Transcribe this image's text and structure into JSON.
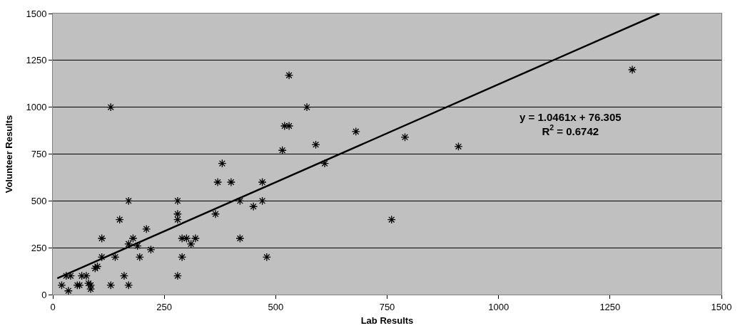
{
  "chart_data": {
    "type": "scatter",
    "xlabel": "Lab Results",
    "ylabel": "Volunteer Results",
    "xlim": [
      0,
      1500
    ],
    "xticks": [
      0,
      250,
      500,
      750,
      1000,
      1250,
      1500
    ],
    "ylim": [
      0,
      1500
    ],
    "yticks": [
      0,
      250,
      500,
      750,
      1000,
      1250,
      1500
    ],
    "grid": "y",
    "marker": "cross",
    "series": [
      {
        "color": "#000000",
        "x": [
          20,
          30,
          35,
          40,
          55,
          60,
          65,
          75,
          80,
          85,
          85,
          95,
          100,
          110,
          110,
          130,
          130,
          140,
          150,
          160,
          170,
          170,
          170,
          180,
          190,
          195,
          210,
          220,
          280,
          280,
          280,
          280,
          290,
          290,
          300,
          310,
          320,
          365,
          370,
          380,
          400,
          420,
          420,
          450,
          470,
          470,
          480,
          515,
          520,
          530,
          530,
          570,
          590,
          610,
          680,
          760,
          790,
          910,
          1300
        ],
        "values": [
          50,
          100,
          20,
          100,
          50,
          50,
          100,
          100,
          60,
          30,
          50,
          140,
          150,
          300,
          200,
          1000,
          50,
          200,
          400,
          100,
          270,
          50,
          500,
          300,
          260,
          200,
          350,
          240,
          500,
          430,
          400,
          100,
          300,
          200,
          300,
          270,
          300,
          430,
          600,
          700,
          600,
          500,
          300,
          470,
          600,
          500,
          200,
          770,
          900,
          900,
          1170,
          1000,
          800,
          700,
          870,
          400,
          840,
          790,
          1200
        ]
      },
      {
        "type": "line",
        "marker": "none",
        "color": "#000000",
        "x": [
          10,
          1361
        ],
        "values": [
          87,
          1500
        ]
      }
    ],
    "annotations": [
      "y = 1.0461x + 76.305\nR$^{2}$ = 0.6742"
    ]
  }
}
